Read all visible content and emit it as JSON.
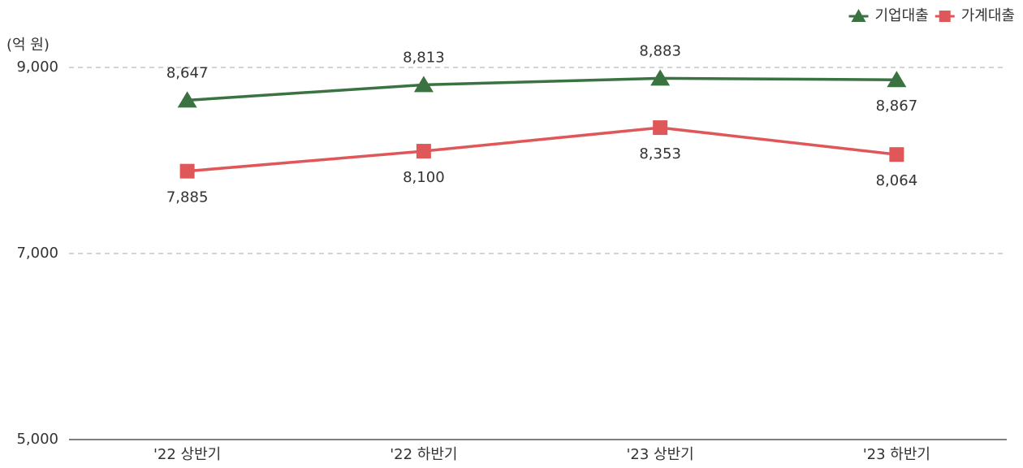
{
  "chart_data": {
    "type": "line",
    "y_label": "(억 원)",
    "categories": [
      "'22 상반기",
      "'22 하반기",
      "'23 상반기",
      "'23 하반기"
    ],
    "series": [
      {
        "name": "기업대출",
        "color": "#3a7341",
        "marker": "triangle",
        "values": [
          8647,
          8813,
          8883,
          8867
        ],
        "value_labels": [
          "8,647",
          "8,813",
          "8,883",
          "8,867"
        ]
      },
      {
        "name": "가계대출",
        "color": "#e0575a",
        "marker": "square",
        "values": [
          7885,
          8100,
          8353,
          8064
        ],
        "value_labels": [
          "7,885",
          "8,100",
          "8,353",
          "8,064"
        ]
      }
    ],
    "ylim": [
      5000,
      9000
    ],
    "yticks": [
      {
        "value": 5000,
        "label": "5,000"
      },
      {
        "value": 7000,
        "label": "7,000"
      },
      {
        "value": 9000,
        "label": "9,000"
      }
    ],
    "grid": true,
    "legend": "top-right"
  }
}
